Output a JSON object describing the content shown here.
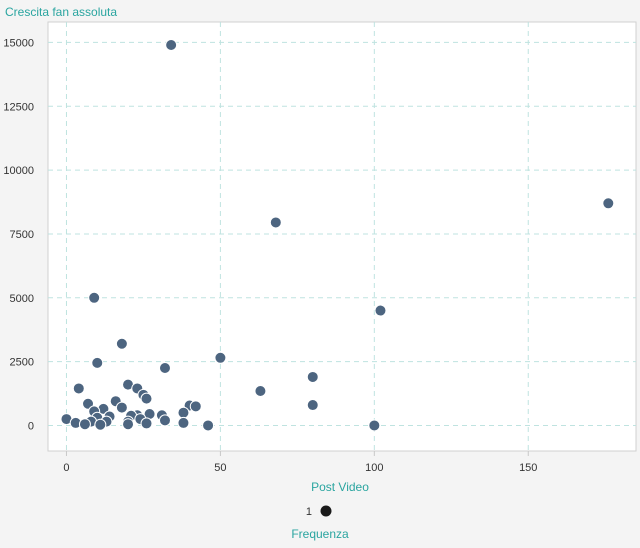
{
  "chart_data": {
    "type": "scatter",
    "ylabel": "Crescita fan assoluta",
    "xlabel": "Post Video",
    "xlim": [
      -6,
      185
    ],
    "ylim": [
      -1000,
      15800
    ],
    "xticks": [
      0,
      50,
      100,
      150
    ],
    "yticks": [
      0,
      2500,
      5000,
      7500,
      10000,
      12500,
      15000
    ],
    "grid": true,
    "legend": {
      "title": "Frequenza",
      "label": "1",
      "position": "bottom-center"
    },
    "series": [
      {
        "color": "#4d6580",
        "points": [
          [
            34,
            14900
          ],
          [
            176,
            8700
          ],
          [
            68,
            7950
          ],
          [
            9,
            5000
          ],
          [
            102,
            4500
          ],
          [
            18,
            3200
          ],
          [
            50,
            2650
          ],
          [
            10,
            2450
          ],
          [
            32,
            2250
          ],
          [
            80,
            1900
          ],
          [
            20,
            1600
          ],
          [
            23,
            1450
          ],
          [
            4,
            1450
          ],
          [
            63,
            1350
          ],
          [
            25,
            1200
          ],
          [
            26,
            1050
          ],
          [
            16,
            950
          ],
          [
            7,
            850
          ],
          [
            80,
            800
          ],
          [
            40,
            780
          ],
          [
            42,
            750
          ],
          [
            18,
            700
          ],
          [
            12,
            650
          ],
          [
            9,
            550
          ],
          [
            38,
            500
          ],
          [
            27,
            450
          ],
          [
            31,
            400
          ],
          [
            23,
            400
          ],
          [
            21,
            380
          ],
          [
            14,
            350
          ],
          [
            10,
            300
          ],
          [
            0,
            250
          ],
          [
            24,
            250
          ],
          [
            32,
            200
          ],
          [
            8,
            150
          ],
          [
            13,
            150
          ],
          [
            20,
            150
          ],
          [
            38,
            100
          ],
          [
            3,
            100
          ],
          [
            26,
            80
          ],
          [
            6,
            50
          ],
          [
            11,
            30
          ],
          [
            46,
            0
          ],
          [
            100,
            0
          ],
          [
            20,
            50
          ]
        ]
      }
    ]
  },
  "colors": {
    "title": "#2aa5a0",
    "grid": "#bfe3e0",
    "marker": "#4d6580",
    "legend_marker": "#1a1a1a"
  }
}
